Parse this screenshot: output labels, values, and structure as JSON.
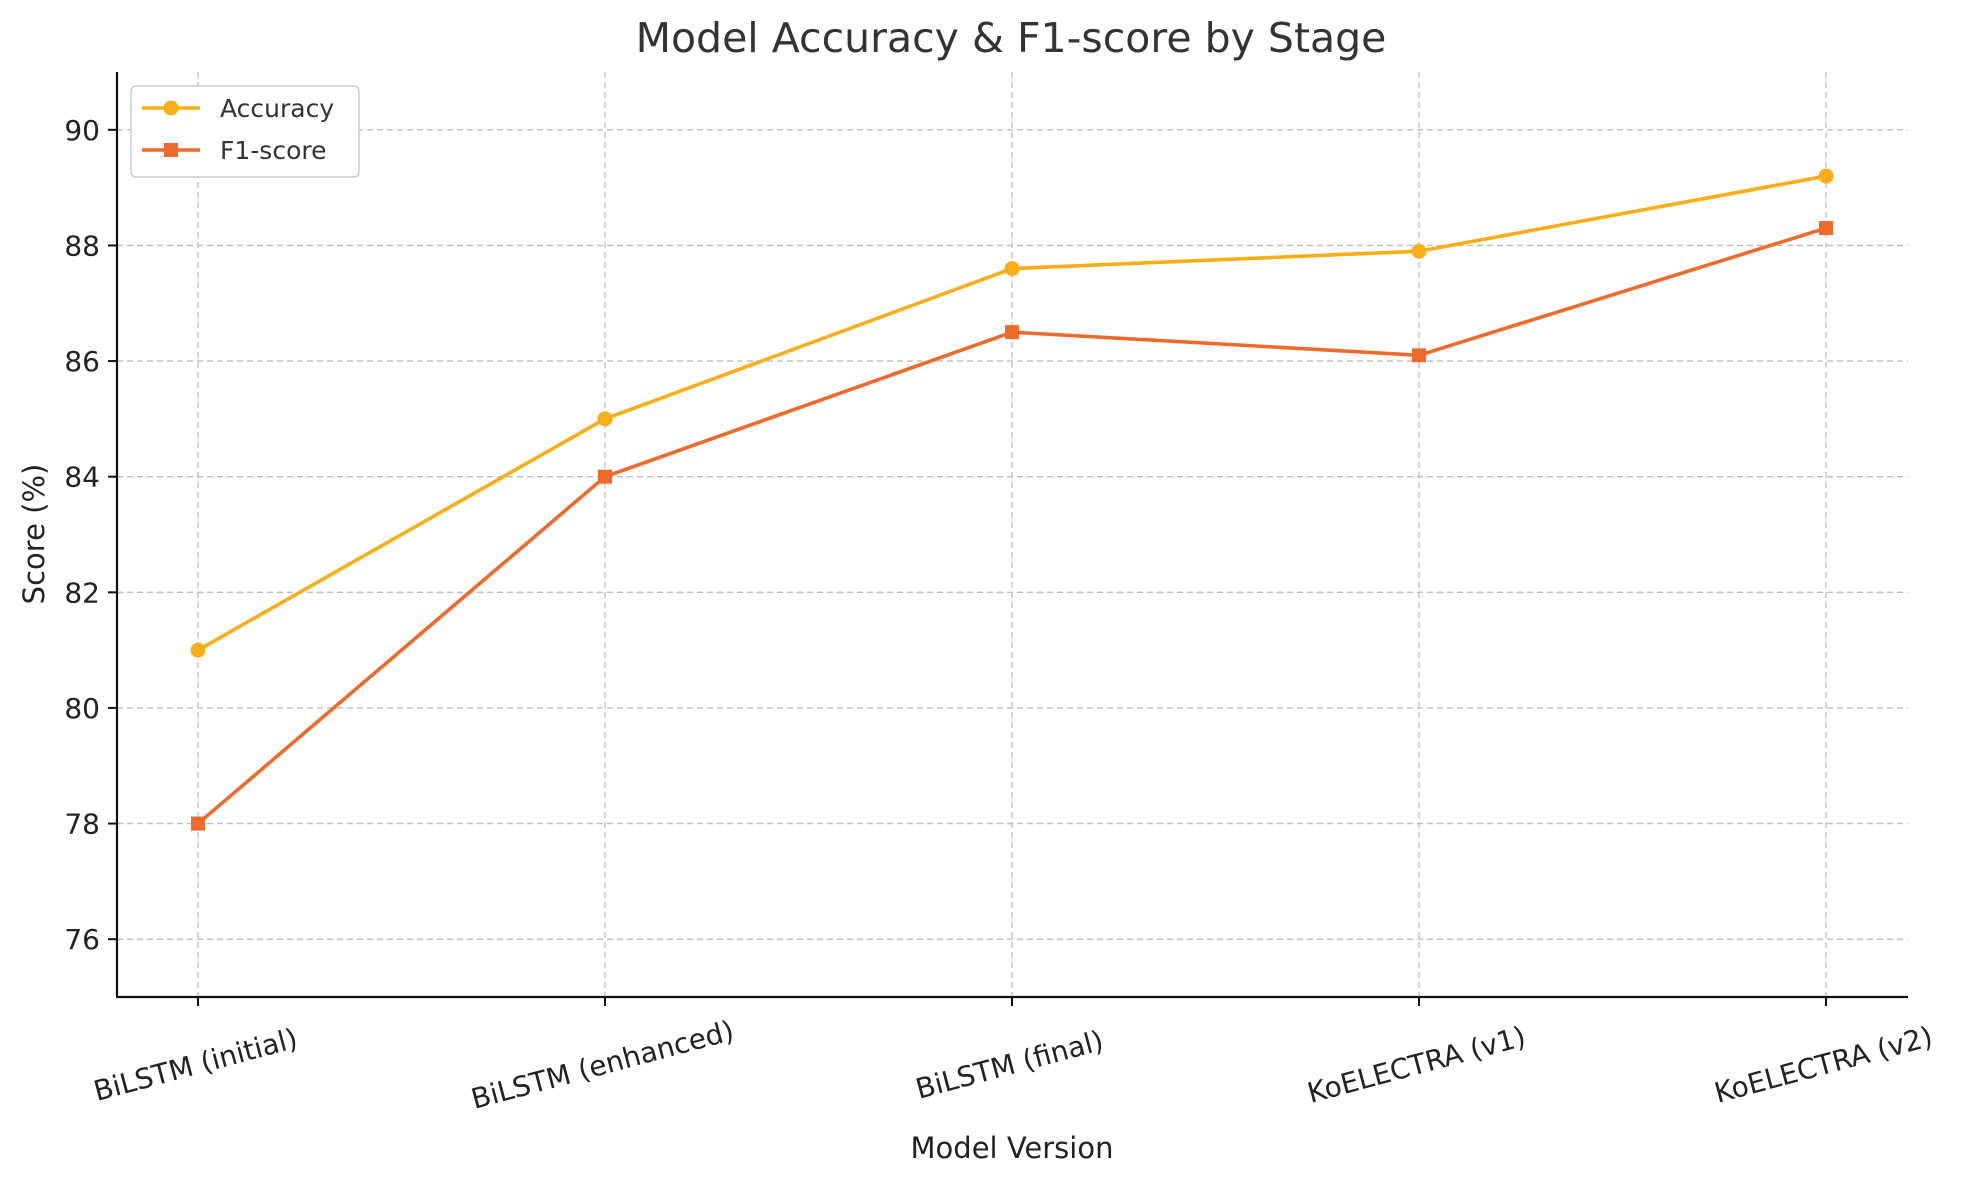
{
  "chart_data": {
    "type": "line",
    "title": "Model Accuracy & F1-score by Stage",
    "xlabel": "Model Version",
    "ylabel": "Score (%)",
    "categories": [
      "BiLSTM (initial)",
      "BiLSTM (enhanced)",
      "BiLSTM (final)",
      "KoELECTRA (v1)",
      "KoELECTRA (v2)"
    ],
    "yticks": [
      76,
      78,
      80,
      82,
      84,
      86,
      88,
      90
    ],
    "ylim": [
      75,
      91
    ],
    "grid": true,
    "legend_position": "upper-left",
    "series": [
      {
        "name": "Accuracy",
        "values": [
          81.0,
          85.0,
          87.6,
          87.9,
          89.2
        ],
        "color": "#F9AE17",
        "marker": "circle"
      },
      {
        "name": "F1-score",
        "values": [
          78.0,
          84.0,
          86.5,
          86.1,
          88.3
        ],
        "color": "#EE6A2A",
        "marker": "square"
      }
    ]
  }
}
